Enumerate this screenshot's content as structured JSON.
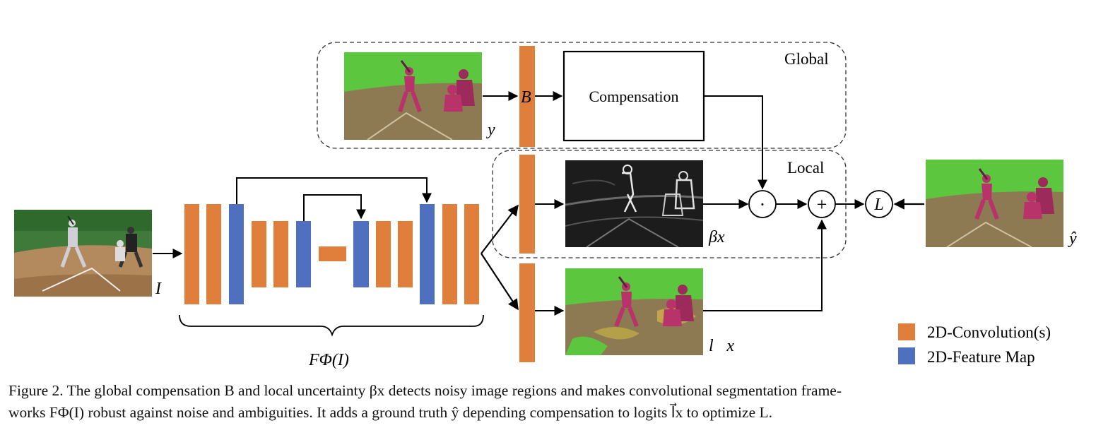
{
  "colors": {
    "convolution": "#E07E3C",
    "feature_map": "#4F6FBF",
    "grass": "#5CC63F",
    "dirt": "#8E7A52",
    "mask": "#B8336A"
  },
  "labels": {
    "global": "Global",
    "local": "Local",
    "compensation": "Compensation",
    "b": "B",
    "y_vec": "y⃗",
    "beta_x": "βx",
    "l_x": "l⃗x",
    "y_hat": "ŷ",
    "input": "I",
    "f_phi": "FΦ(I)",
    "dot_op": "·",
    "plus_op": "+",
    "loss": "L"
  },
  "legend": {
    "convolution": "2D-Convolution(s)",
    "feature_map": "2D-Feature Map"
  },
  "caption": {
    "line1": "Figure 2. The global compensation B and local uncertainty βx detects noisy image regions and makes convolutional segmentation frame-",
    "line2": "works FΦ(I) robust against noise and ambiguities. It adds a ground truth ŷ depending compensation to logits l⃗x to optimize L."
  }
}
